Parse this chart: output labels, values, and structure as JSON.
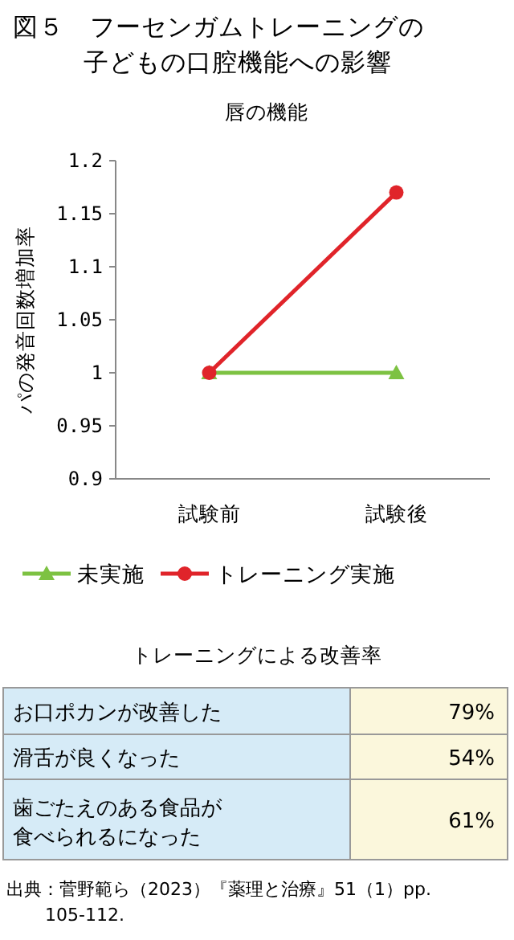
{
  "chart_data": [
    {
      "type": "line",
      "title": "図５　フーセンガムトレーニングの子どもの口腔機能への影響",
      "subtitle": "唇の機能",
      "ylabel": "パの発音回数増加率",
      "categories": [
        "試験前",
        "試験後"
      ],
      "series": [
        {
          "name": "未実施",
          "color": "#7dc242",
          "values": [
            1,
            1
          ],
          "marker": "triangle"
        },
        {
          "name": "トレーニング実施",
          "color": "#e0242a",
          "values": [
            1,
            1.17
          ],
          "marker": "circle"
        }
      ],
      "ylim": [
        0.9,
        1.2
      ],
      "yticks": [
        0.9,
        {
          "value": 0.95,
          "label": "0.95"
        },
        1,
        1.05,
        1.1,
        1.15,
        1.2
      ],
      "grid": false,
      "legend": "bottom",
      "line_style": "solid"
    },
    {
      "type": "other",
      "title": "トレーニングによる改善率",
      "categories": [
        "お口ポカンが改善した",
        "滑舌が良くなった",
        "歯ごたえのある食品が食べられるになった"
      ],
      "value_labels": [
        "79%",
        "54%",
        "61%"
      ],
      "annotations": [
        "出典：菅野範ら（2023）『薬理と治療』51（1）pp. 105-112."
      ]
    }
  ]
}
